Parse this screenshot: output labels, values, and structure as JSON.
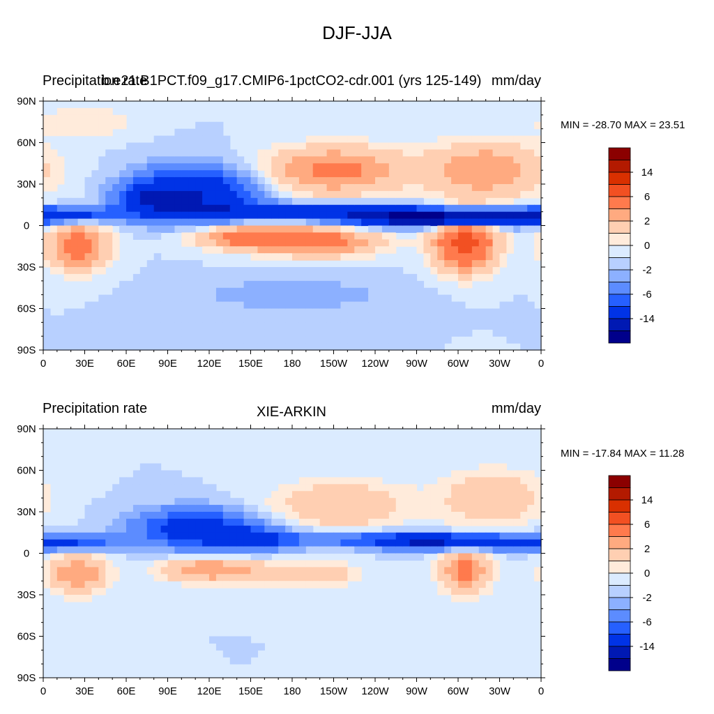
{
  "figure": {
    "title": "DJF-JJA"
  },
  "colorbar": {
    "levels": [
      -14,
      -10,
      -6,
      -4,
      -2,
      -1,
      0,
      1,
      2,
      4,
      6,
      10,
      14
    ],
    "colors": [
      "#00008b",
      "#0019b3",
      "#0033e6",
      "#2660ff",
      "#5c8cff",
      "#8cb0ff",
      "#b8d0ff",
      "#dbebff",
      "#ffebdb",
      "#ffcfb2",
      "#ffaa80",
      "#ff7a4d",
      "#f25022",
      "#d93000",
      "#b31a00",
      "#8b0000"
    ],
    "tick_labels": [
      "14",
      "6",
      "2",
      "0",
      "-2",
      "-6",
      "-14"
    ]
  },
  "chart_data": [
    {
      "type": "heatmap",
      "left_title": "Precipitation rate",
      "center_title": "b.e21.B1PCT.f09_g17.CMIP6-1pctCO2-cdr.001 (yrs 125-149)",
      "right_title": "mm/day",
      "min_max": "MIN = -28.70 MAX =  23.51",
      "min": -28.7,
      "max": 23.51,
      "xlabels": [
        "0",
        "30E",
        "60E",
        "90E",
        "120E",
        "150E",
        "180",
        "150W",
        "120W",
        "90W",
        "60W",
        "30W",
        "0"
      ],
      "ylabels": [
        "90N",
        "60N",
        "30N",
        "0",
        "30S",
        "60S",
        "90S"
      ],
      "xlim": [
        0,
        360
      ],
      "ylim": [
        -90,
        90
      ]
    },
    {
      "type": "heatmap",
      "left_title": "Precipitation rate",
      "center_title": "XIE-ARKIN",
      "right_title": "mm/day",
      "min_max": "MIN = -17.84 MAX =  11.28",
      "min": -17.84,
      "max": 11.28,
      "xlabels": [
        "0",
        "30E",
        "60E",
        "90E",
        "120E",
        "150E",
        "180",
        "150W",
        "120W",
        "90W",
        "60W",
        "30W",
        "0"
      ],
      "ylabels": [
        "90N",
        "60N",
        "30N",
        "0",
        "30S",
        "60S",
        "90S"
      ],
      "xlim": [
        0,
        360
      ],
      "ylim": [
        -90,
        90
      ]
    }
  ]
}
